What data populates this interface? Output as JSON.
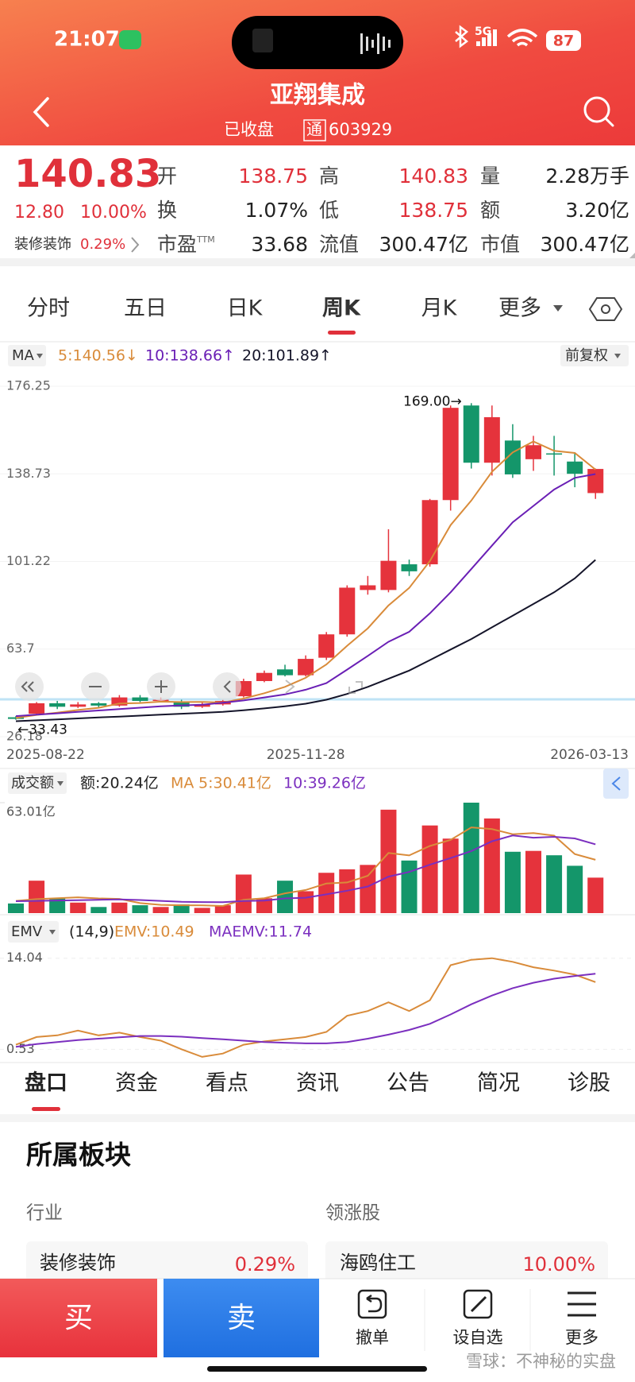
{
  "status_bar": {
    "time": "21:07",
    "network": "5G",
    "battery": "87"
  },
  "header": {
    "title": "亚翔集成",
    "status": "已收盘",
    "badge": "通",
    "code": "603929"
  },
  "quote": {
    "price": "140.83",
    "change": "12.80",
    "change_pct": "10.00%",
    "sector": "装修装饰",
    "sector_pct": "0.29%",
    "pe_suffix": "TTM",
    "fields": [
      {
        "label": "开",
        "value": "138.75"
      },
      {
        "label": "高",
        "value": "140.83"
      },
      {
        "label": "量",
        "value": "2.28万手"
      },
      {
        "label": "换",
        "value": "1.07%"
      },
      {
        "label": "低",
        "value": "138.75"
      },
      {
        "label": "额",
        "value": "3.20亿"
      },
      {
        "label": "市盈",
        "value": "33.68"
      },
      {
        "label": "流值",
        "value": "300.47亿"
      },
      {
        "label": "市值",
        "value": "300.47亿"
      }
    ]
  },
  "kline_tabs": [
    "分时",
    "五日",
    "日K",
    "周K",
    "月K",
    "更多"
  ],
  "chart_data": [
    {
      "type": "candlestick",
      "legend_label": "MA",
      "adjust": "前复权",
      "categories": [
        "2025-08-22",
        null,
        null,
        null,
        null,
        null,
        null,
        null,
        null,
        null,
        null,
        null,
        null,
        null,
        "2025-11-28",
        null,
        null,
        null,
        null,
        null,
        null,
        null,
        null,
        null,
        null,
        null,
        null,
        null,
        "2026-03-13"
      ],
      "open": [
        34.5,
        36,
        40.5,
        39,
        40.5,
        39.5,
        43,
        41.5,
        41,
        39,
        40,
        43.5,
        50,
        55,
        52.5,
        60,
        70,
        89,
        89,
        100,
        100,
        127.5,
        168,
        143.5,
        153,
        145,
        147.5,
        144,
        130.5
      ],
      "high": [
        35,
        41,
        41.5,
        41,
        41,
        44,
        44,
        43,
        42,
        41,
        42,
        51,
        54.5,
        57,
        61,
        71,
        91,
        95,
        115,
        102,
        128,
        168,
        169,
        168,
        160,
        155,
        155,
        148,
        141
      ],
      "low": [
        33.43,
        35.5,
        38,
        38.5,
        38.5,
        39,
        41,
        41,
        38,
        38.5,
        39.5,
        43,
        49.5,
        52,
        52,
        59,
        69,
        87,
        88,
        95,
        99,
        123,
        141,
        138,
        137,
        140,
        138,
        133,
        128
      ],
      "close": [
        33.8,
        40.5,
        39,
        40,
        39.5,
        43,
        41.5,
        42,
        39,
        40,
        41.5,
        50,
        53.5,
        52.5,
        59.5,
        70,
        90,
        91,
        101.5,
        97,
        127.5,
        167,
        143.5,
        163,
        138.5,
        151,
        147,
        138.75,
        140.83
      ],
      "up_color": "#e5333c",
      "down_color": "#14966a",
      "ylim": [
        26.18,
        176.25
      ],
      "yticks": [
        176.25,
        138.73,
        101.22,
        63.7,
        26.18
      ],
      "annotations": [
        "169.00→",
        "←33.43"
      ],
      "series": [
        {
          "name": "5:140.56↓",
          "color": "#d98b3a",
          "values": [
            34.2,
            35.5,
            36.5,
            37.6,
            38.56,
            40.4,
            40.6,
            41.2,
            41,
            41.1,
            40.8,
            42.5,
            44.8,
            47.5,
            51.4,
            57.1,
            65.1,
            72.6,
            82.4,
            89.9,
            101.4,
            116.8,
            127.3,
            139.6,
            147.9,
            152.6,
            148.6,
            147.65,
            140.56
          ]
        },
        {
          "name": "10:138.66↑",
          "color": "#6a1fb5",
          "values": [
            35,
            35.6,
            36.2,
            36.8,
            37.4,
            38,
            38.6,
            39.2,
            39.6,
            39.9,
            40.7,
            41.7,
            43,
            44.3,
            46.3,
            49.1,
            54.9,
            60.8,
            66.8,
            71.1,
            79,
            88,
            98,
            108,
            118,
            125,
            132,
            137,
            138.66
          ]
        },
        {
          "name": "20:101.89↑",
          "color": "#15152a",
          "values": [
            32.8,
            33.2,
            33.6,
            34,
            34.4,
            34.8,
            35.2,
            35.6,
            36,
            36.4,
            36.8,
            37.5,
            38.3,
            39.2,
            40.3,
            42,
            44.5,
            47.5,
            51,
            54.5,
            59,
            63.5,
            68,
            73,
            78,
            83,
            88,
            94,
            101.89
          ]
        }
      ]
    },
    {
      "type": "bar",
      "title": "成交额",
      "summary": "额:20.24亿",
      "legend_label": "MA",
      "values": [
        5.5,
        18.5,
        8.5,
        6,
        3.5,
        6,
        4.5,
        3.5,
        5,
        3,
        4.5,
        22,
        8.5,
        18.5,
        12.5,
        23,
        25,
        27.5,
        59,
        30,
        50,
        42.5,
        63.01,
        54,
        35,
        35.5,
        33,
        27,
        20.24
      ],
      "ylim": [
        0,
        63.01
      ],
      "yticks": [
        {
          "value": 63.01,
          "label": "63.01亿"
        }
      ],
      "series": [
        {
          "name": "5:30.41亿",
          "color": "#d98b3a",
          "values": [
            7,
            8,
            8.5,
            9,
            8.4,
            8.1,
            5.7,
            4.7,
            4.5,
            4.4,
            4.1,
            7.6,
            8.5,
            11.3,
            13.2,
            16.9,
            17.5,
            21.3,
            34.3,
            32.9,
            38.3,
            41.8,
            48.9,
            47.9,
            45,
            45.7,
            44.2,
            33.7,
            30.41
          ]
        },
        {
          "name": "10:39.26亿",
          "color": "#7b2fbf",
          "values": [
            6.8,
            7,
            7.2,
            7.4,
            7.6,
            7.8,
            7.5,
            7,
            6.5,
            6.3,
            6.2,
            6.9,
            7.1,
            8.4,
            8.8,
            10.7,
            12.8,
            15.2,
            20.8,
            23.5,
            27.6,
            31.4,
            35.4,
            41,
            44.3,
            43,
            43.5,
            42.6,
            39.26
          ]
        }
      ]
    },
    {
      "type": "line",
      "title": "EMV",
      "params": "(14,9)",
      "ylim": [
        -1.2,
        15.3
      ],
      "yticks": [
        14.04,
        0.53
      ],
      "series": [
        {
          "name": "EMV:10.49",
          "color": "#d98b3a",
          "values": [
            1.2,
            2.35,
            2.6,
            3.3,
            2.6,
            3,
            2.35,
            1.8,
            0.53,
            -0.6,
            -0.1,
            1.2,
            1.7,
            2,
            2.35,
            3.1,
            5.5,
            6.2,
            7.5,
            6.2,
            7.8,
            13,
            13.8,
            14.04,
            13.5,
            12.7,
            12.2,
            11.6,
            10.49
          ]
        },
        {
          "name": "MAEMV:11.74",
          "color": "#7b2fbf",
          "values": [
            0.9,
            1.3,
            1.6,
            1.9,
            2.1,
            2.3,
            2.5,
            2.5,
            2.4,
            2.2,
            2.0,
            1.8,
            1.6,
            1.5,
            1.4,
            1.4,
            1.6,
            2.1,
            2.7,
            3.4,
            4.3,
            5.7,
            7.2,
            8.5,
            9.6,
            10.4,
            11.0,
            11.4,
            11.74
          ]
        }
      ]
    }
  ],
  "detail_tabs": [
    "盘口",
    "资金",
    "看点",
    "资讯",
    "公告",
    "简况",
    "诊股"
  ],
  "sector_panel": {
    "title": "所属板块",
    "left_header": "行业",
    "right_header": "领涨股",
    "items": [
      {
        "name": "装修装饰",
        "value": "0.29%"
      },
      {
        "name": "海鸥住工",
        "value": "10.00%"
      }
    ]
  },
  "action_bar": {
    "buy": "买",
    "sell": "卖",
    "items": [
      "撤单",
      "设自选",
      "更多"
    ],
    "watermark": "雪球：不神秘的实盘"
  }
}
